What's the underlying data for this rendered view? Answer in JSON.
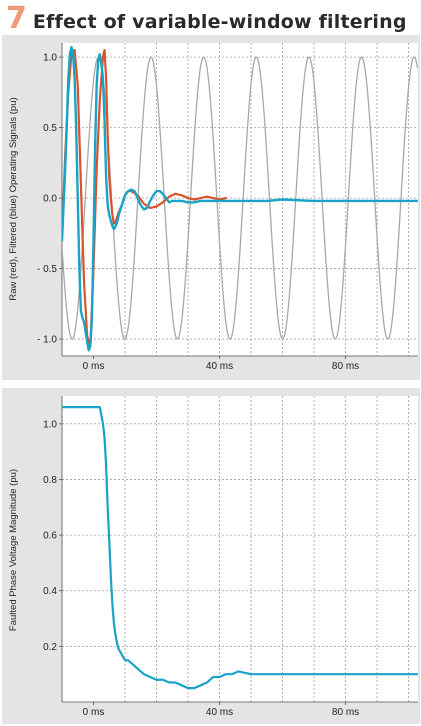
{
  "figure": {
    "number": "7",
    "title": "Effect of variable-window filtering"
  },
  "colors": {
    "figure_number": "#f0997a",
    "raw_signal": "#d9532b",
    "filtered_signal": "#1aa3c8",
    "reference_sine": "#a8a8a8",
    "plot_background": "#ffffff",
    "panel_background": "#e4e4e4",
    "grid": "#a0a0a0"
  },
  "chart_data": [
    {
      "type": "line",
      "ylabel": "Raw (red), Filtered (blue) Operating Signals (pu)",
      "xlabel": "",
      "x_unit": "ms",
      "xlim": [
        -10,
        103
      ],
      "ylim": [
        -1.12,
        1.1
      ],
      "x_ticks": [
        0,
        40,
        80
      ],
      "x_tick_labels": [
        "0 ms",
        "40 ms",
        "80 ms"
      ],
      "x_grid": [
        -10,
        10,
        20,
        30,
        40,
        50,
        60,
        70,
        80,
        90,
        100
      ],
      "y_ticks": [
        -1.0,
        -0.5,
        0.0,
        0.5,
        1.0
      ],
      "y_tick_labels": [
        "- 1.0",
        "- 0.5",
        "0.0",
        "0.5",
        "1.0"
      ],
      "grid": true,
      "series": [
        {
          "role": "reference_sine",
          "function": "sine",
          "amplitude": 1.0,
          "period_ms": 16.7,
          "phase_ms": -2.6,
          "x_range": [
            -10,
            103
          ]
        },
        {
          "role": "raw",
          "x": [
            -10,
            -9,
            -8,
            -7,
            -6,
            -5,
            -4,
            -3,
            -2,
            -1,
            0,
            1,
            2,
            3,
            3.5,
            4,
            4.5,
            5,
            5.5,
            6,
            6.5,
            7,
            8,
            9,
            10,
            11,
            12,
            14,
            16,
            18,
            20,
            22,
            24,
            26,
            28,
            30,
            32,
            34,
            36,
            38,
            40,
            42
          ],
          "y": [
            -0.3,
            0.3,
            0.75,
            1.02,
            1.05,
            0.8,
            0.1,
            -0.6,
            -0.98,
            -1.05,
            -0.5,
            0.2,
            0.7,
            1.0,
            1.05,
            0.85,
            0.45,
            0.15,
            0.0,
            -0.12,
            -0.18,
            -0.17,
            -0.1,
            -0.05,
            0.02,
            0.05,
            0.05,
            0.02,
            -0.04,
            -0.07,
            -0.06,
            -0.03,
            0.01,
            0.03,
            0.02,
            0.0,
            -0.01,
            0.0,
            0.01,
            0.0,
            -0.01,
            0.0
          ]
        },
        {
          "role": "filtered",
          "x": [
            -10,
            -9.5,
            -9,
            -8.5,
            -8,
            -7.5,
            -7,
            -6.5,
            -6,
            -5.5,
            -5,
            -4.5,
            -4,
            -3.5,
            -3,
            -2.5,
            -2,
            -1.5,
            -1,
            -0.5,
            0,
            0.5,
            1,
            1.5,
            2,
            2.5,
            3,
            3.5,
            4,
            4.5,
            5,
            5.5,
            6,
            6.5,
            7,
            7.5,
            8,
            9,
            10,
            11,
            12,
            13,
            14,
            15,
            16,
            17,
            18,
            19,
            20,
            21,
            22,
            23,
            24,
            25,
            26,
            28,
            30,
            32,
            34,
            36,
            40,
            45,
            50,
            55,
            60,
            70,
            80,
            90,
            100,
            103
          ],
          "y": [
            -0.3,
            -0.05,
            0.2,
            0.5,
            0.85,
            1.02,
            1.07,
            1.03,
            0.85,
            0.5,
            0.0,
            -0.5,
            -0.8,
            -0.85,
            -0.88,
            -0.95,
            -1.02,
            -1.08,
            -1.05,
            -0.85,
            -0.3,
            0.35,
            0.8,
            0.98,
            1.02,
            0.95,
            0.85,
            0.55,
            0.15,
            -0.05,
            -0.12,
            -0.16,
            -0.2,
            -0.22,
            -0.2,
            -0.17,
            -0.12,
            -0.05,
            0.02,
            0.05,
            0.06,
            0.05,
            0.0,
            -0.05,
            -0.08,
            -0.07,
            -0.02,
            0.02,
            0.05,
            0.05,
            0.03,
            0.0,
            -0.03,
            -0.02,
            -0.02,
            -0.02,
            -0.03,
            -0.03,
            -0.02,
            -0.02,
            -0.02,
            -0.02,
            -0.02,
            -0.02,
            -0.01,
            -0.02,
            -0.02,
            -0.02,
            -0.02,
            -0.02
          ]
        }
      ]
    },
    {
      "type": "line",
      "ylabel": "Faulted Phase Voltage Magnitude (pu)",
      "xlabel": "",
      "x_unit": "ms",
      "xlim": [
        -10,
        103
      ],
      "ylim": [
        0.0,
        1.1
      ],
      "x_ticks": [
        0,
        40,
        80
      ],
      "x_tick_labels": [
        "0 ms",
        "40 ms",
        "80 ms"
      ],
      "x_grid": [
        -10,
        10,
        20,
        30,
        40,
        50,
        60,
        70,
        80,
        90,
        100
      ],
      "y_ticks": [
        0.2,
        0.4,
        0.6,
        0.8,
        1.0
      ],
      "y_tick_labels": [
        "0.2",
        "0.4",
        "0.6",
        "0.8",
        "1.0"
      ],
      "grid": true,
      "series": [
        {
          "role": "magnitude",
          "x": [
            -10,
            2,
            3,
            3.5,
            4,
            4.5,
            5,
            5.5,
            6,
            6.5,
            7,
            7.5,
            8,
            9,
            10,
            11,
            12,
            14,
            16,
            18,
            20,
            22,
            24,
            26,
            28,
            30,
            32,
            34,
            36,
            38,
            40,
            42,
            44,
            46,
            50,
            60,
            70,
            80,
            90,
            100,
            103
          ],
          "y": [
            1.06,
            1.06,
            1.0,
            0.95,
            0.85,
            0.7,
            0.58,
            0.45,
            0.35,
            0.28,
            0.24,
            0.21,
            0.19,
            0.17,
            0.15,
            0.15,
            0.14,
            0.12,
            0.1,
            0.09,
            0.08,
            0.08,
            0.07,
            0.07,
            0.06,
            0.05,
            0.05,
            0.06,
            0.07,
            0.09,
            0.09,
            0.1,
            0.1,
            0.11,
            0.1,
            0.1,
            0.1,
            0.1,
            0.1,
            0.1,
            0.1
          ]
        }
      ]
    }
  ]
}
